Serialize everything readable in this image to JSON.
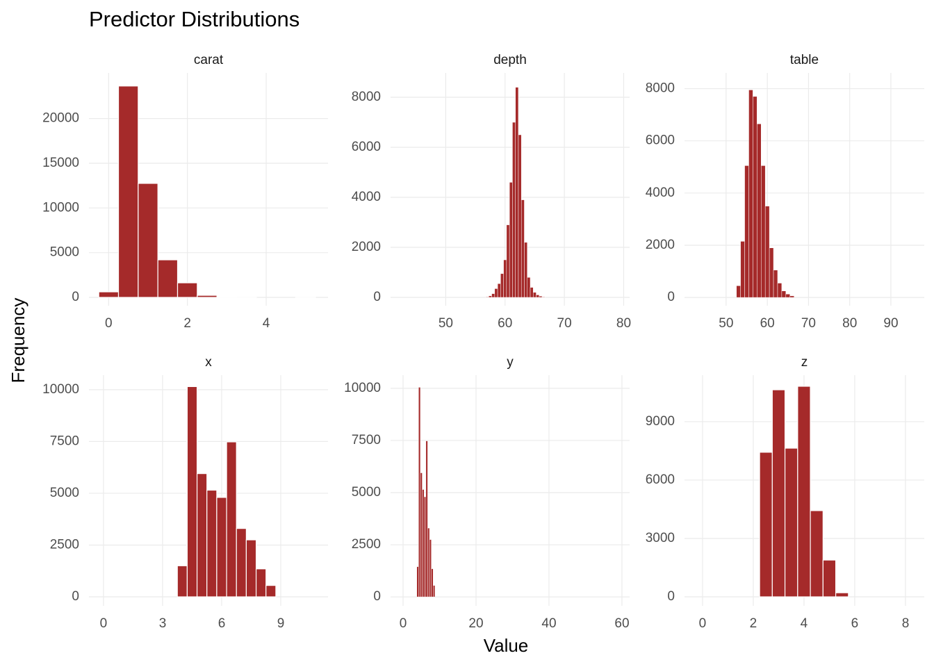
{
  "title": "Predictor Distributions",
  "xlabel": "Value",
  "ylabel": "Frequency",
  "chart_data": [
    {
      "type": "histogram",
      "title": "carat",
      "color": "#a52a2a",
      "grid": true,
      "bins": [
        -0.25,
        0.25,
        0.75,
        1.25,
        1.75,
        2.25,
        2.75,
        3.25,
        3.75,
        4.25,
        4.75,
        5.25
      ],
      "values": [
        620,
        23640,
        12750,
        4200,
        1630,
        230,
        30,
        5,
        0,
        0,
        3
      ],
      "xlim": [
        -0.5,
        5.57
      ],
      "ylim": [
        -930,
        25100
      ],
      "xticks": [
        0,
        2,
        4
      ],
      "yticks": [
        0,
        5000,
        10000,
        15000,
        20000
      ]
    },
    {
      "type": "histogram",
      "title": "depth",
      "color": "#a52a2a",
      "grid": true,
      "bins": [
        56.75,
        57.25,
        57.75,
        58.25,
        58.75,
        59.25,
        59.75,
        60.25,
        60.75,
        61.25,
        61.75,
        62.25,
        62.75,
        63.25,
        63.75,
        64.25,
        64.75,
        65.25,
        65.75,
        66.25,
        66.75
      ],
      "values": [
        20,
        60,
        150,
        350,
        550,
        950,
        1500,
        2900,
        4600,
        7000,
        8400,
        6500,
        3900,
        2200,
        800,
        400,
        200,
        100,
        50,
        20
      ],
      "xlim": [
        40.7,
        81
      ],
      "ylim": [
        -333,
        8972
      ],
      "xticks": [
        50,
        60,
        70,
        80
      ],
      "yticks": [
        0,
        2000,
        4000,
        6000,
        8000
      ]
    },
    {
      "type": "histogram",
      "title": "table",
      "color": "#a52a2a",
      "grid": true,
      "bins": [
        52.5,
        53.5,
        54.5,
        55.5,
        56.5,
        57.5,
        58.5,
        59.5,
        60.5,
        61.5,
        62.5,
        63.5,
        64.5,
        65.5,
        66.5
      ],
      "values": [
        450,
        2150,
        5050,
        7950,
        7700,
        6650,
        5050,
        3500,
        1900,
        1050,
        550,
        250,
        130,
        60
      ],
      "xlim": [
        39.9,
        98.1
      ],
      "ylim": [
        -316,
        8600
      ],
      "xticks": [
        50,
        60,
        70,
        80,
        90
      ],
      "yticks": [
        0,
        2000,
        4000,
        6000,
        8000
      ]
    },
    {
      "type": "histogram",
      "title": "x",
      "color": "#a52a2a",
      "grid": true,
      "bins": [
        3.75,
        4.25,
        4.75,
        5.25,
        5.75,
        6.25,
        6.75,
        7.25,
        7.75,
        8.25,
        8.75
      ],
      "values": [
        1500,
        10150,
        5950,
        5150,
        4800,
        7480,
        3300,
        2750,
        1350,
        550
      ],
      "xlim": [
        -0.74,
        11.4
      ],
      "ylim": [
        -436,
        10700
      ],
      "xticks": [
        0,
        3,
        6,
        9
      ],
      "yticks": [
        0,
        2500,
        5000,
        7500,
        10000
      ]
    },
    {
      "type": "histogram",
      "title": "y",
      "color": "#a52a2a",
      "grid": true,
      "bins": [
        3.75,
        4.25,
        4.75,
        5.25,
        5.75,
        6.25,
        6.75,
        7.25,
        7.75,
        8.25,
        8.75
      ],
      "values": [
        1450,
        10050,
        5950,
        5150,
        4800,
        7480,
        3300,
        2750,
        1350,
        550
      ],
      "xlim": [
        -3.43,
        62.1
      ],
      "ylim": [
        -430,
        10630
      ],
      "xticks": [
        0,
        20,
        40,
        60
      ],
      "yticks": [
        0,
        2500,
        5000,
        7500,
        10000
      ]
    },
    {
      "type": "histogram",
      "title": "z",
      "color": "#a52a2a",
      "grid": true,
      "bins": [
        2.25,
        2.75,
        3.25,
        3.75,
        4.25,
        4.75,
        5.25,
        5.75
      ],
      "values": [
        7430,
        10640,
        7640,
        10820,
        4430,
        1890,
        210
      ],
      "xlim": [
        -0.71,
        8.74
      ],
      "ylim": [
        -464,
        11390
      ],
      "xticks": [
        0,
        2,
        4,
        6,
        8
      ],
      "yticks": [
        0,
        3000,
        6000,
        9000
      ]
    }
  ]
}
